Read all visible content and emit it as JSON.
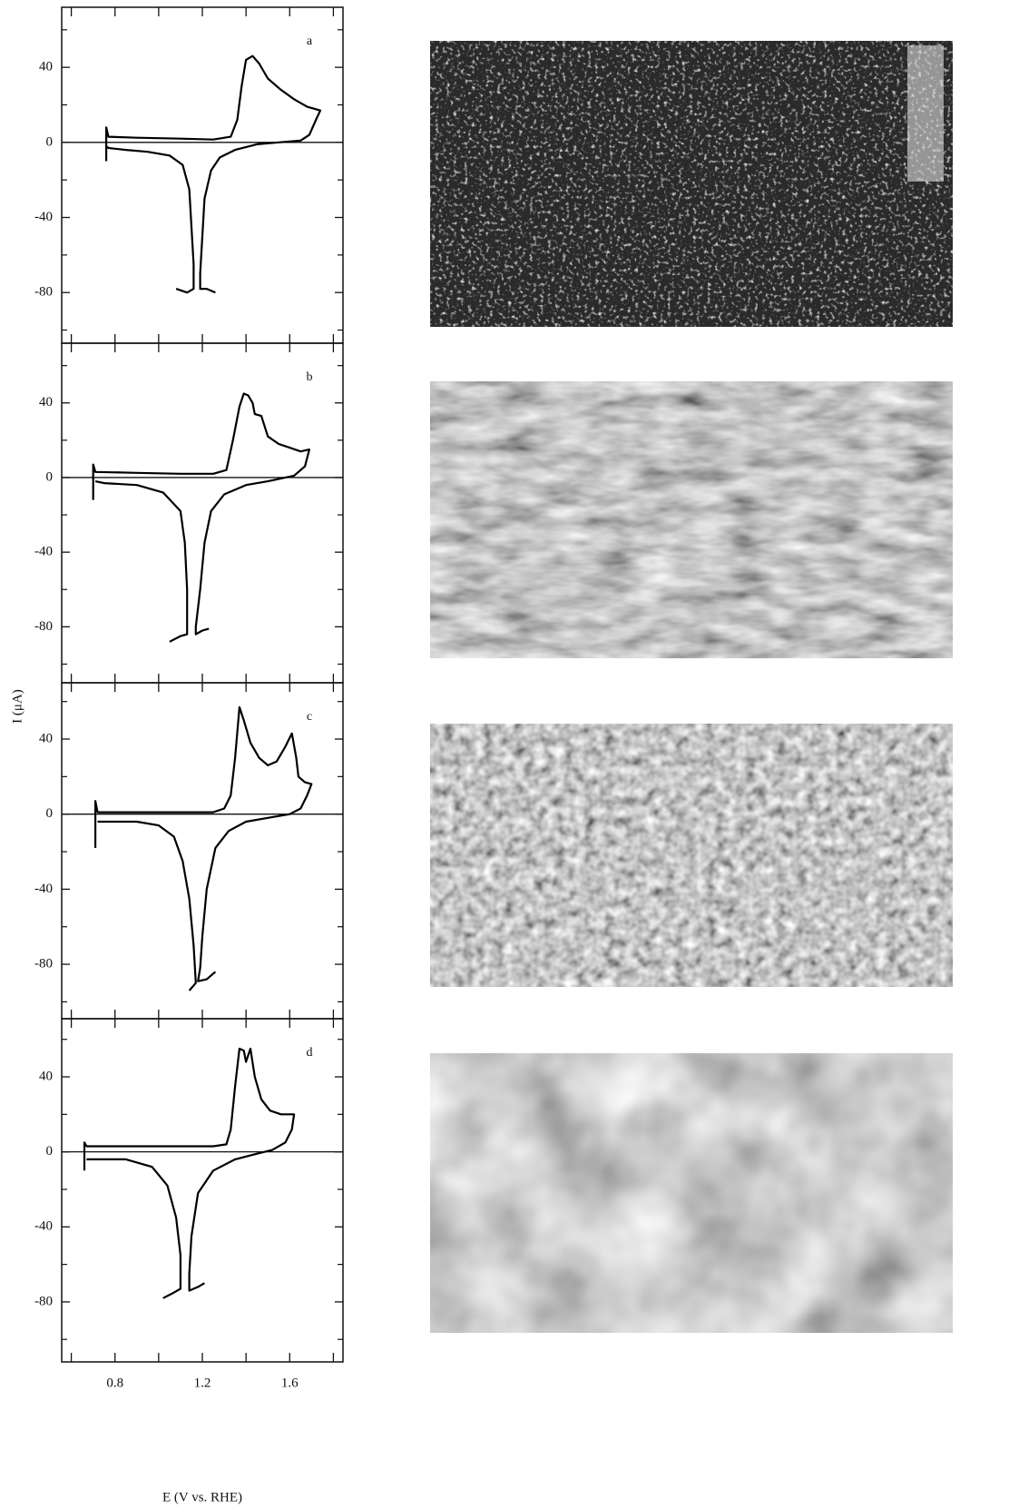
{
  "chart_data": [
    {
      "type": "line",
      "label": "a",
      "color": "#000000",
      "xlim": [
        0.556,
        1.844
      ],
      "ylim": [
        -107,
        72
      ],
      "yticks": [
        40,
        0,
        -40,
        -80
      ],
      "yminorticks": [
        60,
        20,
        -20,
        -60,
        -100
      ],
      "x": [
        0.76,
        0.76,
        0.77,
        0.9,
        1.1,
        1.25,
        1.33,
        1.36,
        1.38,
        1.4,
        1.43,
        1.46,
        1.5,
        1.56,
        1.62,
        1.68,
        1.74,
        1.72,
        1.69,
        1.65,
        1.55,
        1.45,
        1.35,
        1.28,
        1.24,
        1.21,
        1.2,
        1.19,
        1.19,
        1.22,
        1.26,
        null,
        1.08,
        1.13,
        1.16,
        1.16,
        1.15,
        1.14,
        1.11,
        1.05,
        0.95,
        0.85,
        0.77,
        0.76
      ],
      "values": [
        -10,
        8,
        3,
        2.5,
        2,
        1.5,
        3,
        12,
        30,
        44,
        46,
        42,
        34,
        28,
        23,
        19,
        17,
        12,
        4,
        1,
        0,
        -1,
        -4,
        -8,
        -15,
        -30,
        -50,
        -70,
        -78,
        -78,
        -80,
        null,
        -78,
        -80,
        -78,
        -65,
        -45,
        -25,
        -12,
        -7,
        -5,
        -4,
        -3,
        -2
      ]
    },
    {
      "type": "line",
      "label": "b",
      "color": "#000000",
      "xlim": [
        0.556,
        1.844
      ],
      "ylim": [
        -110,
        72
      ],
      "yticks": [
        40,
        0,
        -40,
        -80
      ],
      "yminorticks": [
        60,
        20,
        -20,
        -60,
        -100
      ],
      "x": [
        0.7,
        0.7,
        0.71,
        0.9,
        1.1,
        1.25,
        1.31,
        1.34,
        1.37,
        1.39,
        1.41,
        1.43,
        1.44,
        1.47,
        1.5,
        1.55,
        1.6,
        1.65,
        1.69,
        1.67,
        1.62,
        1.5,
        1.4,
        1.3,
        1.24,
        1.21,
        1.19,
        1.17,
        1.17,
        1.2,
        1.23,
        null,
        1.05,
        1.1,
        1.13,
        1.13,
        1.12,
        1.1,
        1.02,
        0.9,
        0.75,
        0.71
      ],
      "values": [
        -12,
        7,
        3,
        2.5,
        2,
        2,
        4,
        20,
        38,
        45,
        44,
        40,
        34,
        33,
        22,
        18,
        16,
        14,
        15,
        6,
        1,
        -2,
        -4,
        -9,
        -18,
        -35,
        -60,
        -80,
        -84,
        -82,
        -81,
        null,
        -88,
        -85,
        -84,
        -60,
        -35,
        -18,
        -8,
        -4,
        -3,
        -2
      ]
    },
    {
      "type": "line",
      "label": "c",
      "color": "#000000",
      "xlim": [
        0.556,
        1.844
      ],
      "ylim": [
        -109,
        70
      ],
      "yticks": [
        40,
        0,
        -40,
        -80
      ],
      "yminorticks": [
        60,
        20,
        -20,
        -60,
        -100
      ],
      "x": [
        0.71,
        0.71,
        0.72,
        0.9,
        1.1,
        1.25,
        1.3,
        1.33,
        1.35,
        1.37,
        1.39,
        1.42,
        1.46,
        1.5,
        1.54,
        1.58,
        1.61,
        1.63,
        1.64,
        1.67,
        1.7,
        1.68,
        1.65,
        1.6,
        1.5,
        1.4,
        1.32,
        1.26,
        1.22,
        1.2,
        1.19,
        1.18,
        1.22,
        1.26,
        null,
        1.14,
        1.17,
        1.16,
        1.14,
        1.11,
        1.07,
        1.0,
        0.9,
        0.72
      ],
      "values": [
        -18,
        7,
        1,
        1,
        1,
        1,
        3,
        10,
        30,
        57,
        50,
        38,
        30,
        26,
        28,
        36,
        43,
        30,
        20,
        17,
        16,
        10,
        3,
        0,
        -2,
        -4,
        -9,
        -18,
        -40,
        -65,
        -82,
        -89,
        -88,
        -84,
        null,
        -94,
        -90,
        -70,
        -45,
        -25,
        -12,
        -6,
        -4,
        -4
      ]
    },
    {
      "type": "line",
      "label": "d",
      "color": "#000000",
      "xlim": [
        0.556,
        1.844
      ],
      "ylim": [
        -112,
        71
      ],
      "xticks": [
        0.8,
        1.2,
        1.6
      ],
      "xminorticks": [
        0.6,
        1.0,
        1.4,
        1.8
      ],
      "yticks": [
        40,
        0,
        -40,
        -80
      ],
      "yminorticks": [
        60,
        20,
        -20,
        -60,
        -100
      ],
      "xlabel": "E (V vs. RHE)",
      "ylabel": "I (μA)",
      "x": [
        0.66,
        0.66,
        0.67,
        0.9,
        1.1,
        1.25,
        1.31,
        1.33,
        1.35,
        1.37,
        1.39,
        1.4,
        1.42,
        1.44,
        1.47,
        1.51,
        1.56,
        1.62,
        1.61,
        1.58,
        1.52,
        1.45,
        1.35,
        1.25,
        1.18,
        1.15,
        1.14,
        1.14,
        1.18,
        1.21,
        null,
        1.02,
        1.07,
        1.1,
        1.1,
        1.08,
        1.04,
        0.97,
        0.85,
        0.67
      ],
      "values": [
        -10,
        5,
        3,
        3,
        3,
        3,
        4,
        12,
        35,
        55,
        54,
        48,
        55,
        40,
        28,
        22,
        20,
        20,
        12,
        5,
        1,
        -1,
        -4,
        -10,
        -22,
        -45,
        -65,
        -74,
        -72,
        -70,
        null,
        -78,
        -75,
        -73,
        -55,
        -35,
        -18,
        -8,
        -4,
        -4
      ]
    }
  ]
}
